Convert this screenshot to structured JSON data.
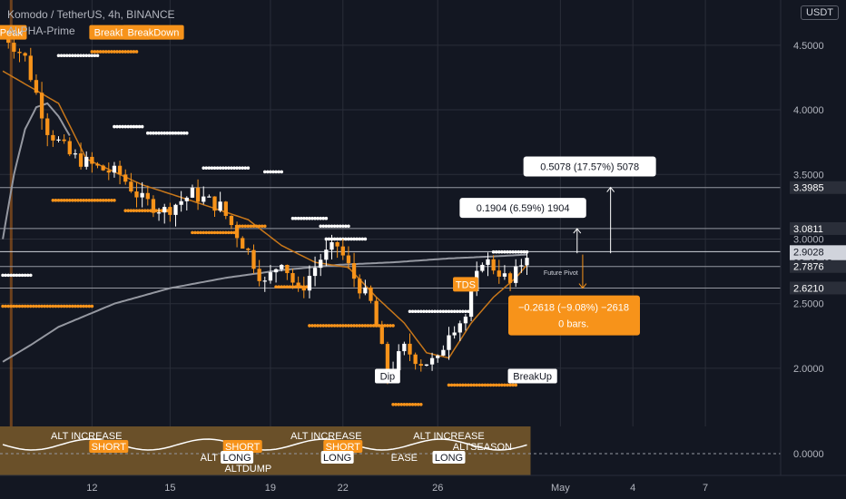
{
  "header": {
    "title": "Komodo / TetherUS, 4h, BINANCE",
    "indicator": "ALPHA-Prime",
    "currency": "USDT"
  },
  "colors": {
    "bg": "#131722",
    "panel": "#1e222d",
    "up": "#ffffff",
    "down": "#f7931a",
    "orange": "#f7931a",
    "ma_orange": "#c8771a",
    "ma_white": "#9598a1",
    "grid": "#2a2e39",
    "axis_text": "#b2b5be"
  },
  "chart_data": {
    "type": "candlestick",
    "symbol": "Komodo / TetherUS",
    "interval": "4h",
    "exchange": "BINANCE",
    "currency": "USDT",
    "y_ticks": [
      "2.0000",
      "2.5000",
      "3.0000",
      "3.5000",
      "4.0000",
      "4.5000"
    ],
    "y_tick_values": [
      2.0,
      2.5,
      3.0,
      3.5,
      4.0,
      4.5
    ],
    "ylim": [
      1.55,
      4.85
    ],
    "x_ticks": [
      "12",
      "15",
      "19",
      "22",
      "26",
      "May",
      "4",
      "7"
    ],
    "x_tick_index": [
      16,
      30,
      48,
      61,
      78,
      100,
      113,
      126
    ],
    "bars_total": 140,
    "last_index": 94,
    "ohlc_anchors": [
      [
        0,
        4.6
      ],
      [
        4,
        4.4
      ],
      [
        8,
        3.85
      ],
      [
        12,
        3.65
      ],
      [
        17,
        3.55
      ],
      [
        21,
        3.5
      ],
      [
        25,
        3.3
      ],
      [
        29,
        3.22
      ],
      [
        34,
        3.35
      ],
      [
        39,
        3.25
      ],
      [
        44,
        2.9
      ],
      [
        47,
        2.65
      ],
      [
        50,
        2.85
      ],
      [
        53,
        2.58
      ],
      [
        57,
        2.85
      ],
      [
        60,
        2.95
      ],
      [
        63,
        2.7
      ],
      [
        66,
        2.5
      ],
      [
        69,
        1.95
      ],
      [
        72,
        2.15
      ],
      [
        75,
        2.05
      ],
      [
        78,
        2.05
      ],
      [
        80,
        2.3
      ],
      [
        83,
        2.4
      ],
      [
        86,
        2.85
      ],
      [
        89,
        2.75
      ],
      [
        91,
        2.65
      ],
      [
        94,
        2.9
      ]
    ],
    "ma_orange_anchors": [
      [
        0,
        4.3
      ],
      [
        10,
        4.05
      ],
      [
        15,
        3.62
      ],
      [
        25,
        3.42
      ],
      [
        35,
        3.28
      ],
      [
        44,
        3.15
      ],
      [
        50,
        2.95
      ],
      [
        56,
        2.82
      ],
      [
        62,
        2.78
      ],
      [
        67,
        2.55
      ],
      [
        72,
        2.35
      ],
      [
        76,
        2.12
      ],
      [
        80,
        2.08
      ],
      [
        84,
        2.35
      ],
      [
        88,
        2.55
      ],
      [
        92,
        2.7
      ],
      [
        94,
        2.8
      ]
    ],
    "ma_white_anchors": [
      [
        0,
        2.05
      ],
      [
        5,
        2.18
      ],
      [
        10,
        2.32
      ],
      [
        20,
        2.5
      ],
      [
        30,
        2.62
      ],
      [
        40,
        2.7
      ],
      [
        50,
        2.76
      ],
      [
        60,
        2.8
      ],
      [
        70,
        2.82
      ],
      [
        80,
        2.85
      ],
      [
        90,
        2.87
      ],
      [
        94,
        2.88
      ]
    ],
    "ma_white_early": [
      [
        0,
        3.0
      ],
      [
        2,
        3.5
      ],
      [
        4,
        3.85
      ],
      [
        6,
        4.02
      ],
      [
        8,
        4.05
      ],
      [
        10,
        3.95
      ],
      [
        12,
        3.8
      ]
    ],
    "dotted_levels": [
      {
        "color": "white",
        "y": 4.42,
        "x0": 10,
        "x1": 17
      },
      {
        "color": "orange",
        "y": 4.45,
        "x0": 16,
        "x1": 24
      },
      {
        "color": "white",
        "y": 3.87,
        "x0": 20,
        "x1": 25
      },
      {
        "color": "white",
        "y": 3.82,
        "x0": 26,
        "x1": 33
      },
      {
        "color": "white",
        "y": 3.55,
        "x0": 36,
        "x1": 44
      },
      {
        "color": "white",
        "y": 3.52,
        "x0": 47,
        "x1": 50
      },
      {
        "color": "orange",
        "y": 3.3,
        "x0": 9,
        "x1": 20
      },
      {
        "color": "orange",
        "y": 3.22,
        "x0": 22,
        "x1": 30
      },
      {
        "color": "orange",
        "y": 3.1,
        "x0": 42,
        "x1": 47
      },
      {
        "color": "orange",
        "y": 3.05,
        "x0": 34,
        "x1": 42
      },
      {
        "color": "white",
        "y": 3.16,
        "x0": 52,
        "x1": 58
      },
      {
        "color": "white",
        "y": 3.1,
        "x0": 57,
        "x1": 62
      },
      {
        "color": "white",
        "y": 3.0,
        "x0": 58,
        "x1": 65
      },
      {
        "color": "white",
        "y": 2.72,
        "x0": 0,
        "x1": 5
      },
      {
        "color": "orange",
        "y": 2.48,
        "x0": 0,
        "x1": 16
      },
      {
        "color": "orange",
        "y": 2.63,
        "x0": 49,
        "x1": 55
      },
      {
        "color": "orange",
        "y": 2.33,
        "x0": 55,
        "x1": 70
      },
      {
        "color": "white",
        "y": 2.44,
        "x0": 73,
        "x1": 84
      },
      {
        "color": "orange",
        "y": 1.87,
        "x0": 80,
        "x1": 92
      },
      {
        "color": "orange",
        "y": 1.72,
        "x0": 70,
        "x1": 75
      },
      {
        "color": "white",
        "y": 2.9,
        "x0": 88,
        "x1": 94
      }
    ],
    "hlines": [
      {
        "price": 3.3985,
        "label": "3.3985",
        "style": "light"
      },
      {
        "price": 3.0811,
        "label": "3.0811",
        "style": "light"
      },
      {
        "price": 2.9028,
        "label": "2.9028",
        "style": "bright",
        "sub": "03:48:42"
      },
      {
        "price": 2.7876,
        "label": "2.7876",
        "style": "light"
      },
      {
        "price": 2.621,
        "label": "2.6210",
        "style": "light"
      }
    ],
    "measures": [
      {
        "text": "0.5078 (17.57%) 5078",
        "from": 2.89,
        "to": 3.4,
        "x": 109,
        "direction": "up"
      },
      {
        "text": "0.1904 (6.59%) 1904",
        "from": 2.89,
        "to": 3.08,
        "x": 103,
        "direction": "up"
      },
      {
        "text": "−0.2618 (−9.08%) −2618",
        "sub": "0 bars.",
        "from": 2.88,
        "to": 2.62,
        "x": 104,
        "direction": "down"
      }
    ],
    "signals": [
      {
        "text": "Peak",
        "x": 1.5,
        "y": 4.6,
        "type": "orange"
      },
      {
        "text": "BreakDown",
        "x": 21,
        "y": 4.6,
        "type": "orange"
      },
      {
        "text": "BreakDown",
        "x": 27,
        "y": 4.6,
        "type": "orange"
      },
      {
        "text": "TDS",
        "x": 83,
        "y": 2.65,
        "type": "orange"
      },
      {
        "text": "Dip",
        "x": 69,
        "y": 1.94,
        "type": "white"
      },
      {
        "text": "BreakUp",
        "x": 95,
        "y": 1.94,
        "type": "white"
      }
    ],
    "future_pivot_label": "Future Pivot",
    "lower_panel": {
      "zero_label": "0.0000",
      "labels": [
        {
          "text": "ALT INCREASE",
          "x": 15,
          "row": 0,
          "type": "text"
        },
        {
          "text": "ALT INCREASE",
          "x": 58,
          "row": 0,
          "type": "text"
        },
        {
          "text": "ALT INCREASE",
          "x": 80,
          "row": 0,
          "type": "text"
        },
        {
          "text": "ALTSEASON",
          "x": 86,
          "row": 1,
          "type": "text"
        },
        {
          "text": "SHORT",
          "x": 19,
          "row": 1,
          "type": "orange"
        },
        {
          "text": "SHORT",
          "x": 43,
          "row": 1,
          "type": "orange"
        },
        {
          "text": "SHORT",
          "x": 61,
          "row": 1,
          "type": "orange"
        },
        {
          "text": "LONG",
          "x": 42,
          "row": 2,
          "type": "white"
        },
        {
          "text": "LONG",
          "x": 60,
          "row": 2,
          "type": "white"
        },
        {
          "text": "LONG",
          "x": 80,
          "row": 2,
          "type": "white"
        },
        {
          "text": "ALT",
          "x": 37,
          "row": 2,
          "type": "text"
        },
        {
          "text": "ALTDUMP",
          "x": 44,
          "row": 3,
          "type": "text"
        },
        {
          "text": "EASE",
          "x": 72,
          "row": 2,
          "type": "text"
        }
      ]
    }
  }
}
